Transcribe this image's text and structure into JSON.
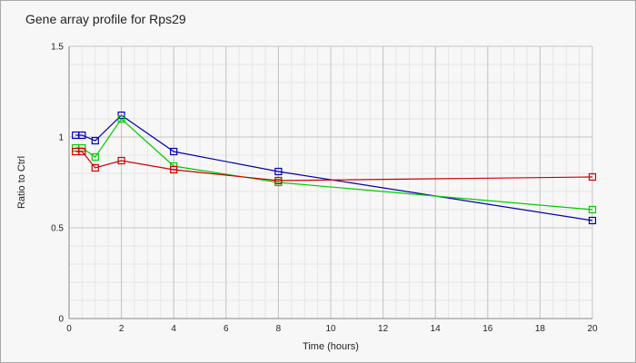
{
  "chart_data": {
    "type": "line",
    "title": "Gene array profile for Rps29",
    "xlabel": "Time (hours)",
    "ylabel": "Ratio to Ctrl",
    "xlim": [
      0,
      20
    ],
    "ylim": [
      0,
      1.5
    ],
    "x_ticks": [
      "0",
      "2",
      "4",
      "6",
      "8",
      "10",
      "12",
      "14",
      "16",
      "18",
      "20"
    ],
    "y_ticks": [
      "0",
      "0.5",
      "1",
      "1.5"
    ],
    "grid": true,
    "legend": "none",
    "marker": "square",
    "series": [
      {
        "color": "#0000aa",
        "x": [
          0.25,
          0.5,
          1,
          2,
          4,
          8,
          20
        ],
        "y": [
          1.01,
          1.01,
          0.98,
          1.12,
          0.92,
          0.81,
          0.54
        ]
      },
      {
        "color": "#00cc00",
        "x": [
          0.25,
          0.5,
          1,
          2,
          4,
          8,
          20
        ],
        "y": [
          0.94,
          0.94,
          0.89,
          1.1,
          0.84,
          0.75,
          0.6
        ]
      },
      {
        "color": "#cc0000",
        "x": [
          0.25,
          0.5,
          1,
          2,
          4,
          8,
          20
        ],
        "y": [
          0.92,
          0.92,
          0.83,
          0.87,
          0.82,
          0.76,
          0.78
        ]
      }
    ]
  }
}
